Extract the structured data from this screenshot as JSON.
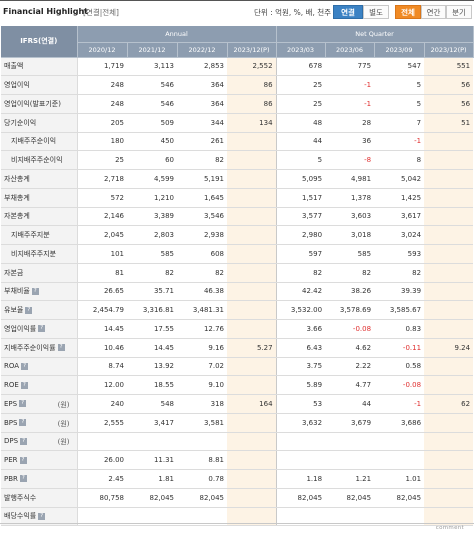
{
  "header": {
    "title": "Financial Highlight",
    "subtitle": "[연결|전체]",
    "unit": "단위 : 억원, %, 배, 천주",
    "buttons": [
      "연결",
      "별도",
      "전체",
      "연간",
      "분기"
    ]
  },
  "table": {
    "corner": "IFRS(연결)",
    "group_annual": "Annual",
    "group_quarter": "Net Quarter",
    "columns": [
      "2020/12",
      "2021/12",
      "2022/12",
      "2023/12(P)",
      "2023/03",
      "2023/06",
      "2023/09",
      "2023/12(P)"
    ],
    "rows": [
      {
        "label": "매출액",
        "unit": "",
        "values": [
          "1,719",
          "3,113",
          "2,853",
          "2,552",
          "678",
          "775",
          "547",
          "551"
        ]
      },
      {
        "label": "영업이익",
        "unit": "",
        "values": [
          "248",
          "546",
          "364",
          "86",
          "25",
          "-1",
          "5",
          "56"
        ]
      },
      {
        "label": "영업이익(발표기준)",
        "unit": "",
        "values": [
          "248",
          "546",
          "364",
          "86",
          "25",
          "-1",
          "5",
          "56"
        ]
      },
      {
        "label": "당기순이익",
        "unit": "",
        "values": [
          "205",
          "509",
          "344",
          "134",
          "48",
          "28",
          "7",
          "51"
        ]
      },
      {
        "label": "지배주주순이익",
        "unit": "",
        "values": [
          "180",
          "450",
          "261",
          "",
          "44",
          "36",
          "-1",
          ""
        ]
      },
      {
        "label": "비지배주주순이익",
        "unit": "",
        "values": [
          "25",
          "60",
          "82",
          "",
          "5",
          "-8",
          "8",
          ""
        ]
      },
      {
        "label": "자산총계",
        "unit": "",
        "values": [
          "2,718",
          "4,599",
          "5,191",
          "",
          "5,095",
          "4,981",
          "5,042",
          ""
        ]
      },
      {
        "label": "부채총계",
        "unit": "",
        "values": [
          "572",
          "1,210",
          "1,645",
          "",
          "1,517",
          "1,378",
          "1,425",
          ""
        ]
      },
      {
        "label": "자본총계",
        "unit": "",
        "values": [
          "2,146",
          "3,389",
          "3,546",
          "",
          "3,577",
          "3,603",
          "3,617",
          ""
        ]
      },
      {
        "label": "지배주주지분",
        "unit": "",
        "values": [
          "2,045",
          "2,803",
          "2,938",
          "",
          "2,980",
          "3,018",
          "3,024",
          ""
        ]
      },
      {
        "label": "비지배주주지분",
        "unit": "",
        "values": [
          "101",
          "585",
          "608",
          "",
          "597",
          "585",
          "593",
          ""
        ]
      },
      {
        "label": "자본금",
        "unit": "",
        "values": [
          "81",
          "82",
          "82",
          "",
          "82",
          "82",
          "82",
          ""
        ]
      },
      {
        "label": "부채비율",
        "unit": "",
        "values": [
          "26.65",
          "35.71",
          "46.38",
          "",
          "42.42",
          "38.26",
          "39.39",
          ""
        ]
      },
      {
        "label": "유보율",
        "unit": "",
        "values": [
          "2,454.79",
          "3,316.81",
          "3,481.31",
          "",
          "3,532.00",
          "3,578.69",
          "3,585.67",
          ""
        ]
      },
      {
        "label": "영업이익률",
        "unit": "",
        "values": [
          "14.45",
          "17.55",
          "12.76",
          "",
          "3.66",
          "-0.08",
          "0.83",
          ""
        ]
      },
      {
        "label": "지배주주순이익률",
        "unit": "",
        "values": [
          "10.46",
          "14.45",
          "9.16",
          "5.27",
          "6.43",
          "4.62",
          "-0.11",
          "9.24"
        ]
      },
      {
        "label": "ROA",
        "unit": "",
        "values": [
          "8.74",
          "13.92",
          "7.02",
          "",
          "3.75",
          "2.22",
          "0.58",
          ""
        ]
      },
      {
        "label": "ROE",
        "unit": "",
        "values": [
          "12.00",
          "18.55",
          "9.10",
          "",
          "5.89",
          "4.77",
          "-0.08",
          ""
        ]
      },
      {
        "label": "EPS",
        "unit": "(원)",
        "values": [
          "240",
          "548",
          "318",
          "164",
          "53",
          "44",
          "-1",
          "62"
        ]
      },
      {
        "label": "BPS",
        "unit": "(원)",
        "values": [
          "2,555",
          "3,417",
          "3,581",
          "",
          "3,632",
          "3,679",
          "3,686",
          ""
        ]
      },
      {
        "label": "DPS",
        "unit": "(원)",
        "values": [
          "",
          "",
          "",
          "",
          "",
          "",
          "",
          ""
        ]
      },
      {
        "label": "PER",
        "unit": "",
        "values": [
          "26.00",
          "11.31",
          "8.81",
          "",
          "",
          "",
          "",
          ""
        ]
      },
      {
        "label": "PBR",
        "unit": "",
        "values": [
          "2.45",
          "1.81",
          "0.78",
          "",
          "1.18",
          "1.21",
          "1.01",
          ""
        ]
      },
      {
        "label": "발행주식수",
        "unit": "",
        "values": [
          "80,758",
          "82,045",
          "82,045",
          "",
          "82,045",
          "82,045",
          "82,045",
          ""
        ]
      },
      {
        "label": "배당수익률",
        "unit": "",
        "values": [
          "",
          "",
          "",
          "",
          "",
          "",
          "",
          ""
        ]
      }
    ]
  },
  "footer": {
    "more": "comment"
  }
}
